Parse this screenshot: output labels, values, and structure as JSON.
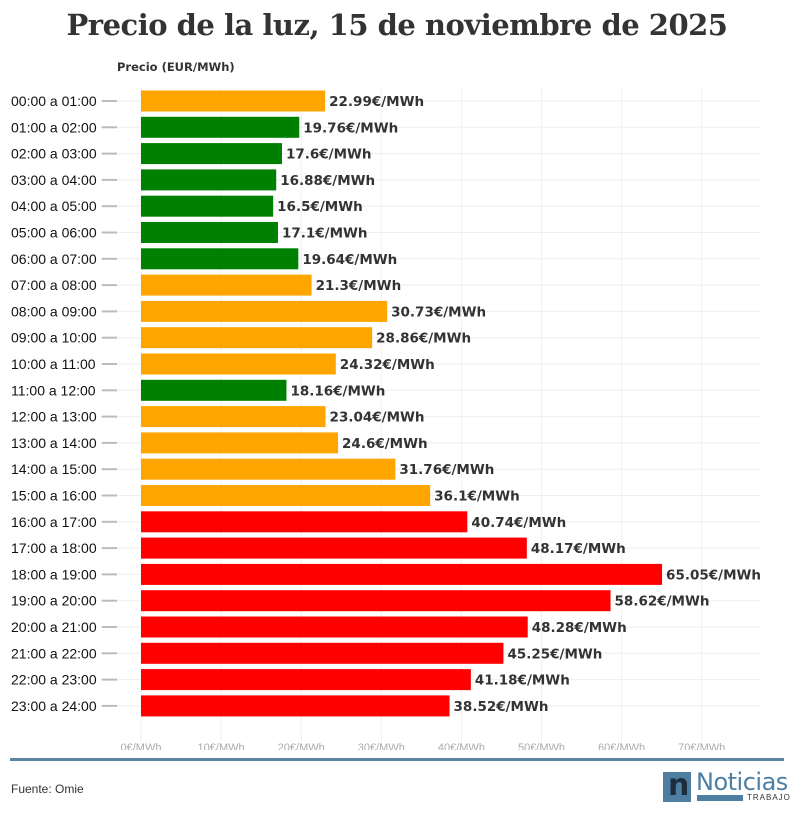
{
  "chart_data": {
    "type": "bar",
    "orientation": "horizontal",
    "title": "Precio de la luz, 15 de noviembre de 2025",
    "ylabel": "Precio (EUR/MWh)",
    "xlabel": "",
    "xlim": [
      0,
      77
    ],
    "xticks": [
      0,
      10,
      20,
      30,
      40,
      50,
      60,
      70
    ],
    "xtick_labels": [
      "0€/MWh",
      "10€/MWh",
      "20€/MWh",
      "30€/MWh",
      "40€/MWh",
      "50€/MWh",
      "60€/MWh",
      "70€/MWh"
    ],
    "grid": true,
    "categories": [
      "00:00 a 01:00",
      "01:00 a 02:00",
      "02:00 a 03:00",
      "03:00 a 04:00",
      "04:00 a 05:00",
      "05:00 a 06:00",
      "06:00 a 07:00",
      "07:00 a 08:00",
      "08:00 a 09:00",
      "09:00 a 10:00",
      "10:00 a 11:00",
      "11:00 a 12:00",
      "12:00 a 13:00",
      "13:00 a 14:00",
      "14:00 a 15:00",
      "15:00 a 16:00",
      "16:00 a 17:00",
      "17:00 a 18:00",
      "18:00 a 19:00",
      "19:00 a 20:00",
      "20:00 a 21:00",
      "21:00 a 22:00",
      "22:00 a 23:00",
      "23:00 a 24:00"
    ],
    "values": [
      22.99,
      19.76,
      17.6,
      16.88,
      16.5,
      17.1,
      19.64,
      21.3,
      30.73,
      28.86,
      24.32,
      18.16,
      23.04,
      24.6,
      31.76,
      36.1,
      40.74,
      48.17,
      65.05,
      58.62,
      48.28,
      45.25,
      41.18,
      38.52
    ],
    "value_labels": [
      "22.99€/MWh",
      "19.76€/MWh",
      "17.6€/MWh",
      "16.88€/MWh",
      "16.5€/MWh",
      "17.1€/MWh",
      "19.64€/MWh",
      "21.3€/MWh",
      "30.73€/MWh",
      "28.86€/MWh",
      "24.32€/MWh",
      "18.16€/MWh",
      "23.04€/MWh",
      "24.6€/MWh",
      "31.76€/MWh",
      "36.1€/MWh",
      "40.74€/MWh",
      "48.17€/MWh",
      "65.05€/MWh",
      "58.62€/MWh",
      "48.28€/MWh",
      "45.25€/MWh",
      "41.18€/MWh",
      "38.52€/MWh"
    ],
    "levels": [
      "medium",
      "low",
      "low",
      "low",
      "low",
      "low",
      "low",
      "medium",
      "medium",
      "medium",
      "medium",
      "low",
      "medium",
      "medium",
      "medium",
      "medium",
      "high",
      "high",
      "high",
      "high",
      "high",
      "high",
      "high",
      "high"
    ],
    "colors": {
      "low": "#008000",
      "medium": "#ffa500",
      "high": "#ff0000"
    }
  },
  "footer": {
    "source": "Fuente: Omie",
    "logo_letter": "n",
    "logo_word": "Noticias",
    "logo_sub": "TRABAJO"
  }
}
